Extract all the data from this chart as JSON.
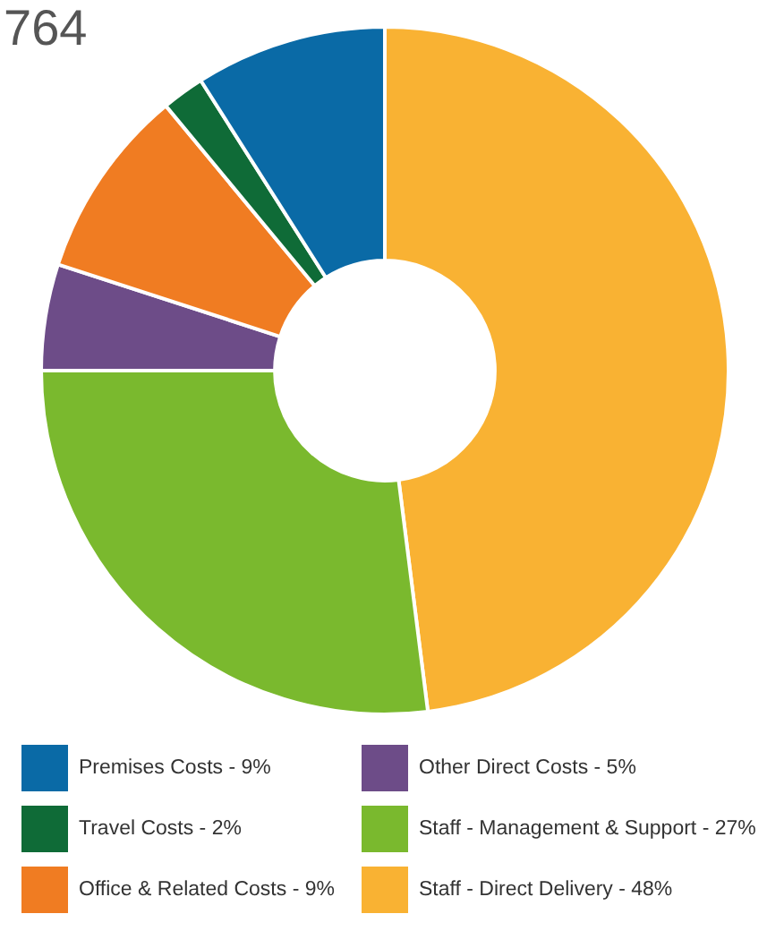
{
  "chart_data": {
    "type": "donut",
    "title": "764",
    "categories": [
      "Staff - Direct Delivery - 48%",
      "Staff - Management & Support - 27%",
      "Other Direct Costs - 5%",
      "Office & Related Costs - 9%",
      "Travel Costs - 2%",
      "Premises Costs - 9%"
    ],
    "values": [
      48,
      27,
      5,
      9,
      2,
      9
    ],
    "colors": [
      "#f9b233",
      "#7ab92e",
      "#6d4c88",
      "#f07c22",
      "#0f6b37",
      "#0a6aa6"
    ],
    "legend": "bottom"
  }
}
